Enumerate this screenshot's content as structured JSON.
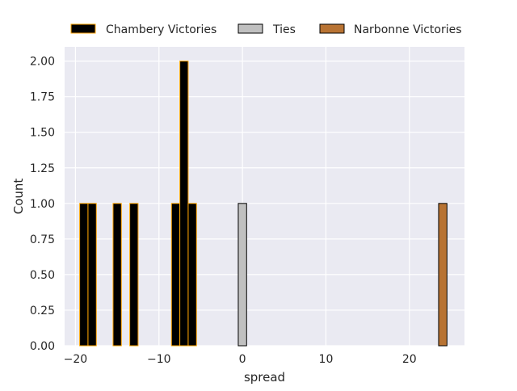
{
  "chart_data": {
    "type": "bar",
    "xlabel": "spread",
    "ylabel": "Count",
    "xlim": [
      -21.3,
      26.6
    ],
    "ylim": [
      0,
      2.1
    ],
    "bin_width": 1.0,
    "grid": true,
    "legend_placement": "top-center",
    "x_ticks": [
      -20,
      -10,
      0,
      10,
      20
    ],
    "x_tick_labels": [
      "−20",
      "−10",
      "0",
      "10",
      "20"
    ],
    "y_ticks": [
      0,
      0.25,
      0.5,
      0.75,
      1.0,
      1.25,
      1.5,
      1.75,
      2.0
    ],
    "y_tick_labels": [
      "0.00",
      "0.25",
      "0.50",
      "0.75",
      "1.00",
      "1.25",
      "1.50",
      "1.75",
      "2.00"
    ],
    "series": [
      {
        "name": "Chambery Victories",
        "fill": "#000000",
        "edge": "#ffa500",
        "bins": [
          {
            "x": -19,
            "count": 1
          },
          {
            "x": -18,
            "count": 1
          },
          {
            "x": -15,
            "count": 1
          },
          {
            "x": -13,
            "count": 1
          },
          {
            "x": -8,
            "count": 1
          },
          {
            "x": -7,
            "count": 2
          },
          {
            "x": -6,
            "count": 1
          }
        ]
      },
      {
        "name": "Ties",
        "fill": "#c0c0c0",
        "edge": "#000000",
        "bins": [
          {
            "x": 0,
            "count": 1
          }
        ]
      },
      {
        "name": "Narbonne Victories",
        "fill": "#b87333",
        "edge": "#000000",
        "bins": [
          {
            "x": 24,
            "count": 1
          }
        ]
      }
    ],
    "colors": {
      "plot_background": "#eaeaf2",
      "grid": "#ffffff"
    }
  }
}
